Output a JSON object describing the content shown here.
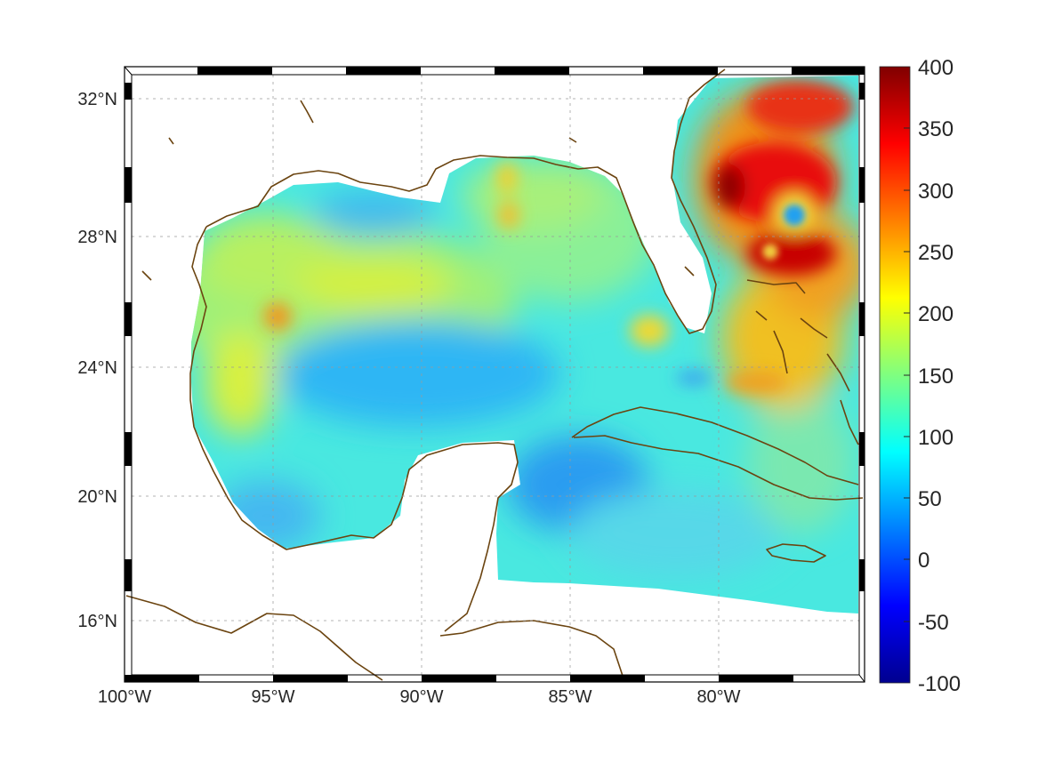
{
  "map": {
    "region": "Gulf of Mexico and western Caribbean",
    "lon_range": [
      -100,
      -75
    ],
    "lat_range": [
      14.2,
      32.9
    ],
    "x_ticks": [
      "100°W",
      "95°W",
      "90°W",
      "85°W",
      "80°W"
    ],
    "x_tick_values": [
      -100,
      -95,
      -90,
      -85,
      -80
    ],
    "y_ticks": [
      "32°N",
      "28°N",
      "24°N",
      "20°N",
      "16°N"
    ],
    "y_tick_values": [
      32,
      28,
      24,
      20,
      16
    ],
    "grid": true,
    "frame_style": "alternating black/white map border",
    "coastline_color": "#6B4410",
    "colormap": "jet",
    "features": [
      "Gulf of Mexico coastline",
      "Florida peninsula",
      "Cuba",
      "Yucatan peninsula",
      "Jamaica",
      "Bahamas",
      "hurricane eye east of Florida"
    ]
  },
  "colorbar": {
    "ticks": [
      "400",
      "350",
      "300",
      "250",
      "200",
      "150",
      "100",
      "50",
      "0",
      "-50",
      "-100"
    ],
    "tick_values": [
      400,
      350,
      300,
      250,
      200,
      150,
      100,
      50,
      0,
      -50,
      -100
    ],
    "range": [
      -100,
      400
    ],
    "placement": "right"
  }
}
